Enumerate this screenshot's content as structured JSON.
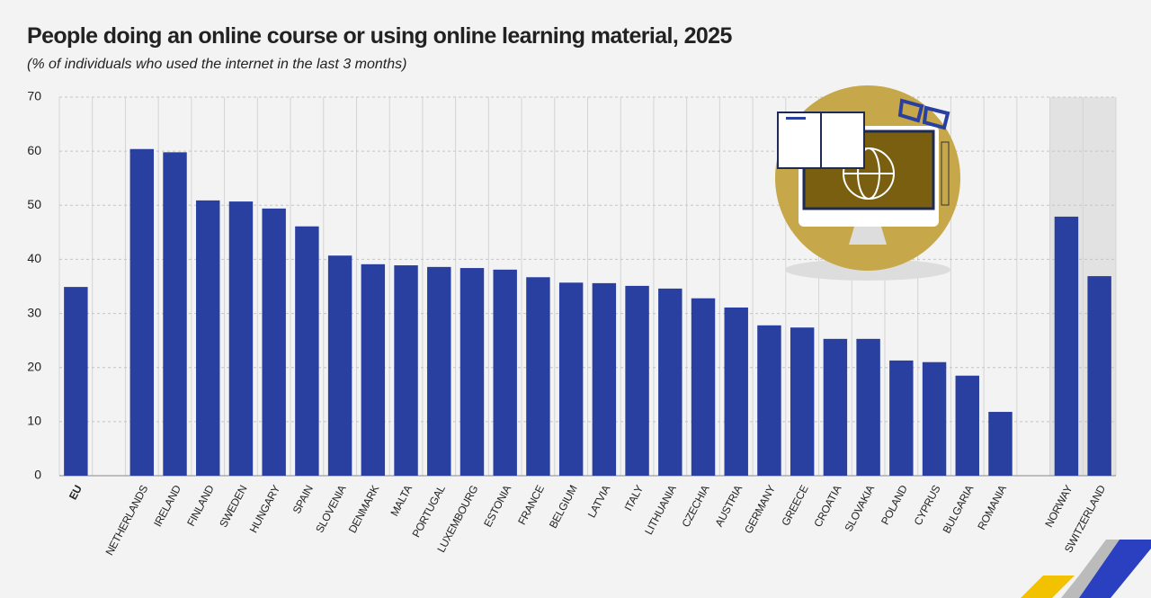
{
  "chart_data": {
    "type": "bar",
    "title": "People doing an online course or using online learning material, 2025",
    "subtitle": "(% of individuals who used the internet in the last 3 months)",
    "categories": [
      "EU",
      null,
      "NETHERLANDS",
      "IRELAND",
      "FINLAND",
      "SWEDEN",
      "HUNGARY",
      "SPAIN",
      "SLOVENIA",
      "DENMARK",
      "MALTA",
      "PORTUGAL",
      "LUXEMBOURG",
      "ESTONIA",
      "FRANCE",
      "BELGIUM",
      "LATVIA",
      "ITALY",
      "LITHUANIA",
      "CZECHIA",
      "AUSTRIA",
      "GERMANY",
      "GREECE",
      "CROATIA",
      "SLOVAKIA",
      "POLAND",
      "CYPRUS",
      "BULGARIA",
      "ROMANIA",
      null,
      "NORWAY",
      "SWITZERLAND"
    ],
    "values": [
      34.9,
      null,
      60.4,
      59.8,
      50.9,
      50.7,
      49.4,
      46.1,
      40.7,
      39.1,
      38.9,
      38.6,
      38.4,
      38.1,
      36.7,
      35.7,
      35.6,
      35.1,
      34.6,
      32.8,
      31.1,
      27.8,
      27.4,
      25.3,
      25.3,
      21.3,
      21.0,
      18.5,
      11.8,
      null,
      47.9,
      36.9
    ],
    "color": "#2a40a0",
    "ylim": [
      0,
      70
    ],
    "yticks": [
      0,
      10,
      20,
      30,
      40,
      50,
      60,
      70
    ],
    "grid": true
  }
}
